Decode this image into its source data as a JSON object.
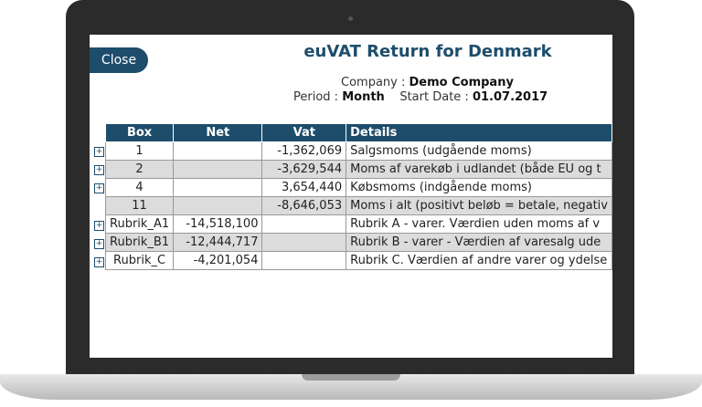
{
  "header": {
    "close_button": "Close",
    "title": "euVAT Return for Denmark",
    "company_label": "Company :",
    "company_value": "Demo Company",
    "period_label": "Period :",
    "period_value": "Month",
    "start_date_label": "Start Date :",
    "start_date_value": "01.07.2017"
  },
  "table": {
    "columns": [
      "Box",
      "Net",
      "Vat",
      "Details"
    ],
    "rows": [
      [
        "1",
        "",
        "-1,362,069",
        "Salgsmoms (udgående moms)"
      ],
      [
        "2",
        "",
        "-3,629,544",
        "Moms af varekøb i udlandet (både EU og t"
      ],
      [
        "4",
        "",
        "3,654,440",
        "Købsmoms (indgående moms)"
      ],
      [
        "11",
        "",
        "-8,646,053",
        "Moms i alt (positivt beløb = betale, negativ"
      ],
      [
        "Rubrik_A1",
        "-14,518,100",
        "",
        "Rubrik A - varer. Værdien uden moms af v"
      ],
      [
        "Rubrik_B1",
        "-12,444,717",
        "",
        "Rubrik B - varer - Værdien af varesalg ude"
      ],
      [
        "Rubrik_C",
        "-4,201,054",
        "",
        "Rubrik C. Værdien af andre varer og ydelse"
      ]
    ],
    "expandable": [
      true,
      true,
      true,
      false,
      true,
      true,
      true
    ]
  }
}
